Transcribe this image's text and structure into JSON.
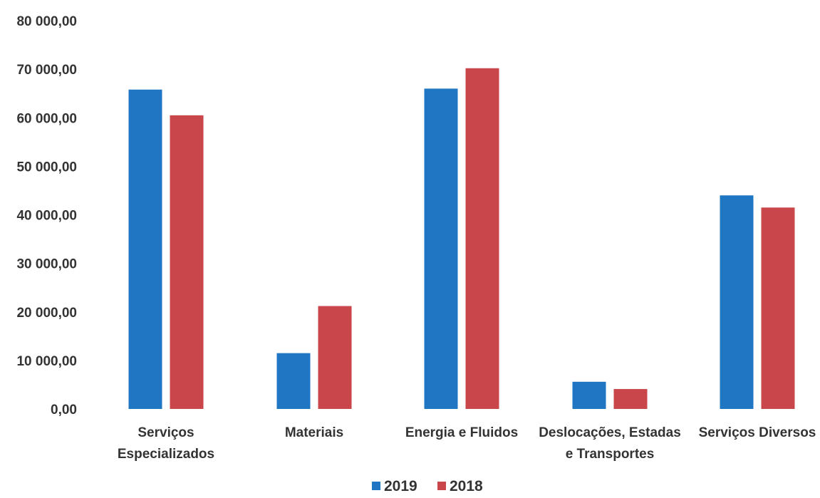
{
  "chart_data": {
    "type": "bar",
    "categories": [
      [
        "Serviços",
        "Especializados"
      ],
      [
        "Materiais"
      ],
      [
        "Energia e Fluidos"
      ],
      [
        "Deslocações, Estadas",
        "e Transportes"
      ],
      [
        "Serviços Diversos"
      ]
    ],
    "series": [
      {
        "name": "2019",
        "color": "#1f77c4",
        "values": [
          65800,
          11500,
          66000,
          5600,
          44000
        ]
      },
      {
        "name": "2018",
        "color": "#c9464b",
        "values": [
          60500,
          21200,
          70200,
          4100,
          41500
        ]
      }
    ],
    "y_ticks": [
      "0,00",
      "10 000,00",
      "20 000,00",
      "30 000,00",
      "40 000,00",
      "50 000,00",
      "60 000,00",
      "70 000,00",
      "80 000,00"
    ],
    "ylim": [
      0,
      80000
    ],
    "grid": false,
    "legend_position": "bottom-center"
  }
}
